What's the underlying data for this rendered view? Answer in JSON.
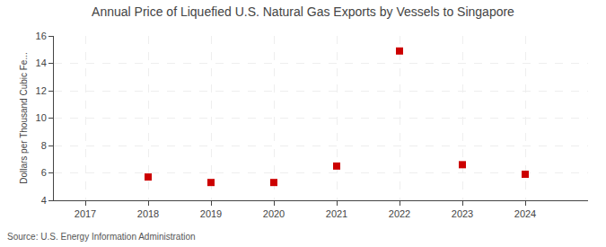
{
  "chart_data": {
    "type": "scatter",
    "title": "Annual Price of Liquefied U.S. Natural Gas Exports by Vessels to Singapore",
    "y_label": "Dollars per Thousand Cubic Fe...",
    "annotations": [
      "Source: U.S. Energy Information Administration"
    ],
    "x": [
      2018,
      2019,
      2020,
      2021,
      2022,
      2023,
      2024
    ],
    "values": [
      5.7,
      5.3,
      5.3,
      6.5,
      14.9,
      6.6,
      5.9
    ],
    "color": "#cc0000",
    "marker": "square",
    "xlim": [
      2016.5,
      2025.0
    ],
    "ylim": [
      4,
      16
    ],
    "xticks": [
      2017,
      2018,
      2019,
      2020,
      2021,
      2022,
      2023,
      2024
    ],
    "yticks": [
      4,
      6,
      8,
      10,
      12,
      14,
      16
    ],
    "grid": true
  }
}
